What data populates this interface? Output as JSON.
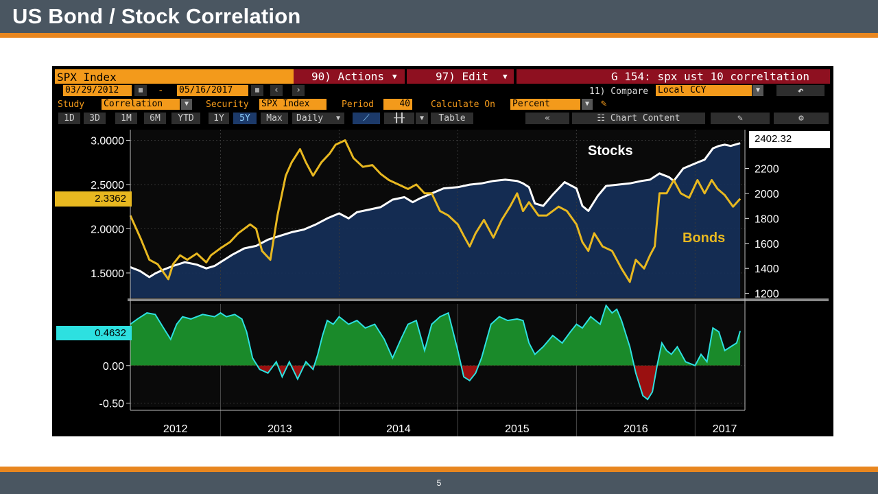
{
  "slide": {
    "title": "US Bond / Stock Correlation",
    "page_number": "5"
  },
  "terminal": {
    "security_header": "SPX Index",
    "actions_menu": "90) Actions",
    "edit_menu": "97) Edit",
    "chart_title": "G 154: spx ust 10 correltation",
    "start_date": "03/29/2012",
    "date_separator": "-",
    "end_date": "05/16/2017",
    "compare_label": "11) Compare",
    "currency": "Local CCY",
    "study_label": "Study",
    "study_value": "Correlation",
    "security_label": "Security",
    "security_value": "SPX Index",
    "period_label": "Period",
    "period_value": "40",
    "calc_label": "Calculate On",
    "calc_value": "Percent",
    "ranges": [
      "1D",
      "3D",
      "1M",
      "6M",
      "YTD",
      "1Y",
      "5Y",
      "Max"
    ],
    "active_range": "5Y",
    "frequency": "Daily",
    "table_label": "Table",
    "chart_content_label": "Chart Content",
    "icons": {
      "calendar": "calendar-icon",
      "prev": "chevron-left-icon",
      "next": "chevron-right-icon",
      "back": "back-arrow-icon",
      "pencil": "pencil-icon",
      "line_chart": "line-chart-icon",
      "bar_chart": "bar-chart-icon",
      "collapse": "double-chevron-left-icon",
      "chart_content": "chart-content-icon",
      "edit_chart": "edit-chart-icon",
      "settings": "gear-icon"
    }
  },
  "colors": {
    "terminal_orange": "#f39a1b",
    "terminal_red": "#8e1020",
    "bonds": "#e8b820",
    "stocks": "#ffffff",
    "stocks_fill": "#15305a",
    "corr_line": "#2de0e0",
    "corr_positive": "#1a8a2a",
    "corr_negative": "#9a1010"
  },
  "chart_data": [
    {
      "type": "line",
      "left_axis": {
        "ticks": [
          "3.0000",
          "2.5000",
          "2.0000",
          "1.5000"
        ],
        "ylim": [
          1.22,
          3.12
        ],
        "current_value_label": "2.3362"
      },
      "right_axis": {
        "ticks": [
          "2200",
          "2000",
          "1800",
          "1600",
          "1400",
          "1200"
        ],
        "ylim": [
          1165,
          2510
        ],
        "current_value_label": "2402.32"
      },
      "series": [
        {
          "name": "Bonds",
          "axis": "left",
          "current": 2.3362,
          "x": [
            2012.24,
            2012.33,
            2012.4,
            2012.47,
            2012.56,
            2012.6,
            2012.66,
            2012.72,
            2012.8,
            2012.88,
            2012.92,
            2013.0,
            2013.08,
            2013.15,
            2013.2,
            2013.25,
            2013.3,
            2013.35,
            2013.42,
            2013.48,
            2013.55,
            2013.6,
            2013.67,
            2013.72,
            2013.78,
            2013.85,
            2013.92,
            2013.97,
            2014.05,
            2014.12,
            2014.2,
            2014.28,
            2014.35,
            2014.42,
            2014.5,
            2014.58,
            2014.65,
            2014.72,
            2014.78,
            2014.85,
            2014.92,
            2015.0,
            2015.05,
            2015.1,
            2015.15,
            2015.22,
            2015.3,
            2015.37,
            2015.44,
            2015.5,
            2015.55,
            2015.6,
            2015.68,
            2015.75,
            2015.85,
            2015.92,
            2016.0,
            2016.05,
            2016.1,
            2016.15,
            2016.22,
            2016.3,
            2016.38,
            2016.45,
            2016.5,
            2016.57,
            2016.62,
            2016.66,
            2016.7,
            2016.76,
            2016.82,
            2016.88,
            2016.95,
            2017.02,
            2017.08,
            2017.14,
            2017.19,
            2017.25,
            2017.32,
            2017.38
          ],
          "y": [
            2.15,
            1.88,
            1.65,
            1.6,
            1.43,
            1.6,
            1.7,
            1.65,
            1.72,
            1.62,
            1.7,
            1.78,
            1.85,
            1.95,
            2.0,
            2.05,
            2.0,
            1.75,
            1.65,
            2.15,
            2.6,
            2.75,
            2.9,
            2.75,
            2.6,
            2.75,
            2.85,
            2.95,
            3.0,
            2.8,
            2.7,
            2.72,
            2.62,
            2.55,
            2.5,
            2.45,
            2.5,
            2.4,
            2.4,
            2.2,
            2.15,
            2.05,
            1.92,
            1.8,
            1.95,
            2.1,
            1.9,
            2.1,
            2.25,
            2.4,
            2.2,
            2.3,
            2.15,
            2.15,
            2.25,
            2.2,
            2.05,
            1.85,
            1.75,
            1.95,
            1.8,
            1.75,
            1.55,
            1.4,
            1.65,
            1.55,
            1.7,
            1.8,
            2.4,
            2.4,
            2.55,
            2.4,
            2.35,
            2.55,
            2.4,
            2.55,
            2.45,
            2.38,
            2.25,
            2.34
          ]
        },
        {
          "name": "Stocks",
          "axis": "right",
          "current": 2402.32,
          "x": [
            2012.24,
            2012.32,
            2012.4,
            2012.45,
            2012.52,
            2012.6,
            2012.7,
            2012.8,
            2012.88,
            2012.95,
            2013.0,
            2013.1,
            2013.2,
            2013.3,
            2013.4,
            2013.5,
            2013.6,
            2013.7,
            2013.8,
            2013.9,
            2014.0,
            2014.08,
            2014.15,
            2014.25,
            2014.35,
            2014.45,
            2014.55,
            2014.62,
            2014.68,
            2014.78,
            2014.88,
            2015.0,
            2015.1,
            2015.2,
            2015.3,
            2015.4,
            2015.5,
            2015.55,
            2015.6,
            2015.65,
            2015.72,
            2015.8,
            2015.9,
            2016.0,
            2016.05,
            2016.1,
            2016.18,
            2016.25,
            2016.35,
            2016.45,
            2016.55,
            2016.62,
            2016.7,
            2016.78,
            2016.82,
            2016.9,
            2017.0,
            2017.08,
            2017.15,
            2017.2,
            2017.25,
            2017.3,
            2017.38
          ],
          "y": [
            1410,
            1380,
            1330,
            1360,
            1390,
            1420,
            1450,
            1430,
            1400,
            1420,
            1450,
            1510,
            1560,
            1580,
            1630,
            1660,
            1690,
            1710,
            1750,
            1800,
            1840,
            1800,
            1850,
            1870,
            1890,
            1950,
            1970,
            1930,
            1960,
            2000,
            2040,
            2050,
            2070,
            2080,
            2100,
            2110,
            2100,
            2080,
            2050,
            1920,
            1900,
            1990,
            2090,
            2040,
            1900,
            1860,
            1980,
            2060,
            2070,
            2080,
            2100,
            2110,
            2160,
            2130,
            2100,
            2200,
            2240,
            2270,
            2360,
            2380,
            2390,
            2380,
            2402
          ]
        }
      ],
      "annotations": [
        "Stocks",
        "Bonds"
      ]
    },
    {
      "type": "area",
      "left_axis": {
        "ticks": [
          "0.00",
          "-0.50"
        ],
        "ylim": [
          -0.55,
          0.82
        ],
        "current_value_label": "0.4632"
      },
      "current": 0.4632,
      "x": [
        2012.24,
        2012.3,
        2012.38,
        2012.45,
        2012.52,
        2012.58,
        2012.63,
        2012.68,
        2012.75,
        2012.85,
        2012.95,
        2013.0,
        2013.05,
        2013.12,
        2013.18,
        2013.22,
        2013.27,
        2013.33,
        2013.4,
        2013.47,
        2013.52,
        2013.58,
        2013.65,
        2013.72,
        2013.78,
        2013.82,
        2013.86,
        2013.9,
        2013.95,
        2014.0,
        2014.08,
        2014.15,
        2014.22,
        2014.3,
        2014.38,
        2014.45,
        2014.52,
        2014.58,
        2014.65,
        2014.72,
        2014.78,
        2014.85,
        2014.92,
        2015.0,
        2015.05,
        2015.1,
        2015.15,
        2015.2,
        2015.28,
        2015.35,
        2015.42,
        2015.5,
        2015.55,
        2015.6,
        2015.65,
        2015.72,
        2015.8,
        2015.88,
        2015.95,
        2016.0,
        2016.05,
        2016.12,
        2016.2,
        2016.25,
        2016.3,
        2016.34,
        2016.38,
        2016.45,
        2016.5,
        2016.56,
        2016.6,
        2016.64,
        2016.68,
        2016.72,
        2016.76,
        2016.8,
        2016.85,
        2016.92,
        2017.0,
        2017.05,
        2017.1,
        2017.15,
        2017.2,
        2017.25,
        2017.3,
        2017.35,
        2017.38
      ],
      "y": [
        0.55,
        0.62,
        0.7,
        0.68,
        0.5,
        0.35,
        0.55,
        0.65,
        0.62,
        0.68,
        0.65,
        0.7,
        0.65,
        0.68,
        0.62,
        0.45,
        0.1,
        -0.05,
        -0.1,
        0.05,
        -0.15,
        0.05,
        -0.18,
        0.05,
        -0.05,
        0.15,
        0.4,
        0.6,
        0.55,
        0.65,
        0.55,
        0.6,
        0.5,
        0.55,
        0.35,
        0.1,
        0.35,
        0.55,
        0.6,
        0.2,
        0.55,
        0.65,
        0.7,
        0.2,
        -0.15,
        -0.2,
        -0.1,
        0.1,
        0.55,
        0.65,
        0.6,
        0.62,
        0.6,
        0.3,
        0.15,
        0.25,
        0.4,
        0.3,
        0.45,
        0.55,
        0.5,
        0.65,
        0.55,
        0.8,
        0.7,
        0.75,
        0.6,
        0.25,
        -0.1,
        -0.4,
        -0.45,
        -0.35,
        0.0,
        0.3,
        0.2,
        0.15,
        0.25,
        0.05,
        0.0,
        0.15,
        0.05,
        0.5,
        0.45,
        0.2,
        0.25,
        0.3,
        0.46
      ]
    }
  ],
  "x_axis": {
    "tick_labels": [
      "2012",
      "2013",
      "2014",
      "2015",
      "2016",
      "2017"
    ],
    "tick_positions": [
      2012.62,
      2013.5,
      2014.5,
      2015.5,
      2016.5,
      2017.25
    ],
    "dividers": [
      2013.0,
      2014.0,
      2015.0,
      2016.0,
      2017.0
    ]
  }
}
